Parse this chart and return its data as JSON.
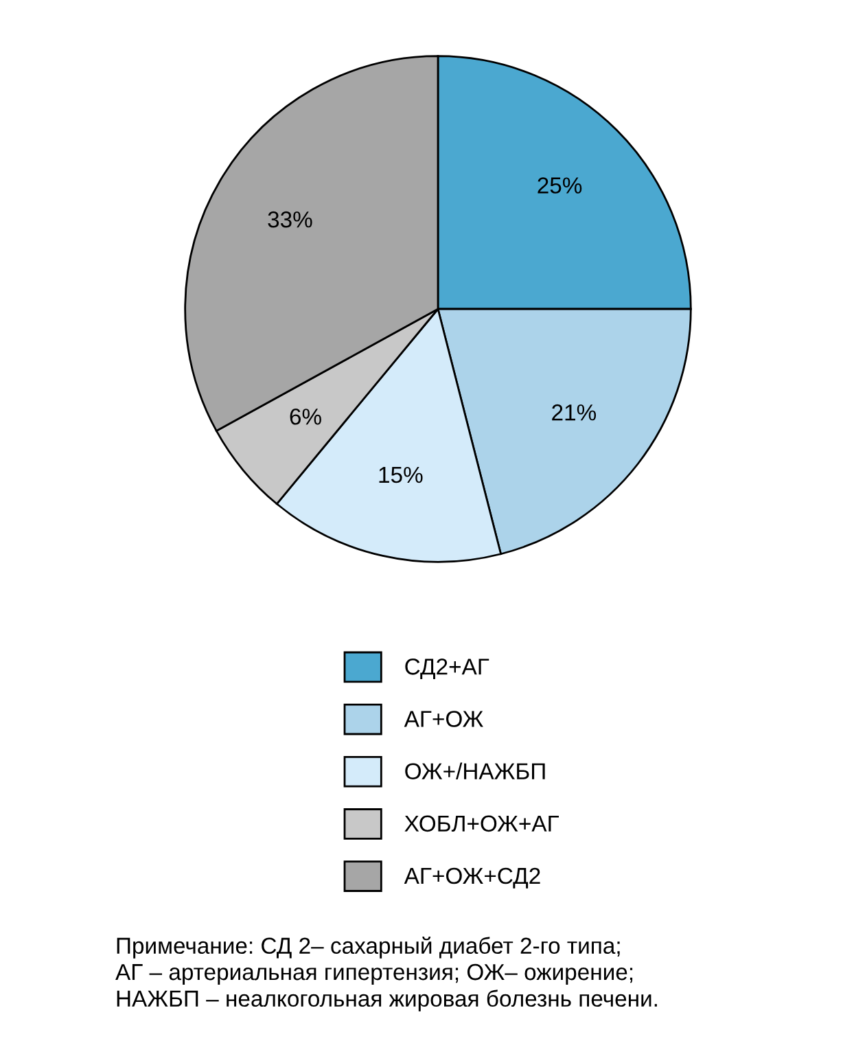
{
  "chart_data": {
    "type": "pie",
    "categories": [
      "СД2+АГ",
      "АГ+ОЖ",
      "ОЖ+/НАЖБП",
      "ХОБЛ+ОЖ+АГ",
      "АГ+ОЖ+СД2"
    ],
    "values": [
      25,
      21,
      15,
      6,
      33
    ],
    "colors": [
      "#4ba8d0",
      "#acd3ea",
      "#d4ebfa",
      "#c8c8c8",
      "#a6a6a6"
    ],
    "value_labels": [
      "25%",
      "21%",
      "15%",
      "6%",
      "33%"
    ],
    "legend": "bottom",
    "annotations": [
      "Примечание: СД 2– сахарный диабет 2-го типа;\nАГ – артериальная гипертензия; ОЖ– ожирение;\nНАЖБП – неалкогольная жировая болезнь печени."
    ]
  }
}
